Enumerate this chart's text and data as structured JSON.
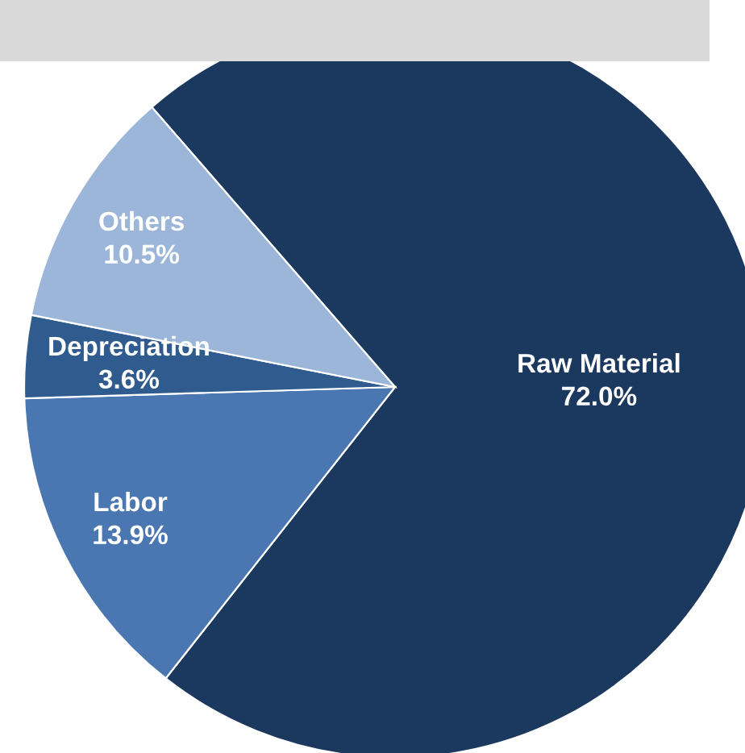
{
  "chart_data": {
    "type": "pie",
    "categories": [
      "Raw Material",
      "Labor",
      "Depreciation",
      "Others"
    ],
    "values": [
      72.0,
      13.9,
      3.6,
      10.5
    ],
    "value_labels": [
      "72.0%",
      "13.9%",
      "3.6%",
      "10.5%"
    ],
    "colors": [
      "#1b385e",
      "#4a76b1",
      "#2f5b8e",
      "#9cb6da"
    ],
    "legend": false
  }
}
